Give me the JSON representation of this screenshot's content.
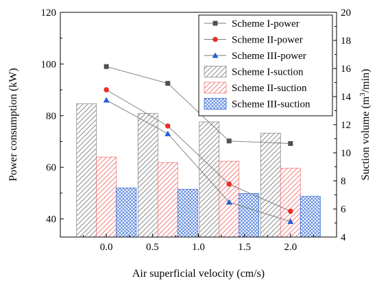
{
  "chart_data": {
    "type": "bar",
    "xlabel": "Air superficial velocity (cm/s)",
    "ylabel_left": "Power consumption (kW)",
    "ylabel_right_parts": {
      "pre": "Suction volume (m",
      "sup": "3",
      "post": "/min)"
    },
    "xlim": [
      -0.5,
      2.5
    ],
    "xticks": [
      "0.0",
      "0.5",
      "1.0",
      "1.5",
      "2.0"
    ],
    "xtick_values": [
      0.0,
      0.5,
      1.0,
      1.5,
      2.0
    ],
    "ylim_left": [
      33,
      120
    ],
    "yticks_left": [
      "40",
      "60",
      "80",
      "100",
      "120"
    ],
    "ytick_values_left": [
      40,
      60,
      80,
      100,
      120
    ],
    "ylim_right": [
      4,
      20
    ],
    "yticks_right": [
      "4",
      "6",
      "8",
      "10",
      "12",
      "14",
      "16",
      "18",
      "20"
    ],
    "ytick_values_right": [
      4,
      6,
      8,
      10,
      12,
      14,
      16,
      18,
      20
    ],
    "x": [
      0.0,
      0.667,
      1.333,
      2.0
    ],
    "line_series": [
      {
        "name": "Scheme I-power",
        "marker": "square",
        "color": "#505050",
        "values": [
          99.0,
          92.5,
          70.2,
          69.2
        ]
      },
      {
        "name": "Scheme II-power",
        "marker": "circle",
        "color": "#e8302a",
        "values": [
          90.0,
          76.0,
          53.5,
          43.0
        ]
      },
      {
        "name": "Scheme III-power",
        "marker": "triangle",
        "color": "#1f5fd6",
        "values": [
          86.0,
          73.0,
          46.5,
          39.0
        ]
      }
    ],
    "bar_series": [
      {
        "name": "Scheme I-suction",
        "pattern": "hatch-gray",
        "color": "#8c8c8c",
        "values": [
          13.5,
          12.8,
          12.2,
          11.4
        ]
      },
      {
        "name": "Scheme II-suction",
        "pattern": "hatch-red",
        "color": "#f07f7f",
        "values": [
          9.7,
          9.3,
          9.4,
          8.9
        ]
      },
      {
        "name": "Scheme III-suction",
        "pattern": "crosshatch-blue",
        "color": "#3a6fd8",
        "values": [
          7.5,
          7.4,
          7.1,
          6.9
        ]
      }
    ]
  }
}
